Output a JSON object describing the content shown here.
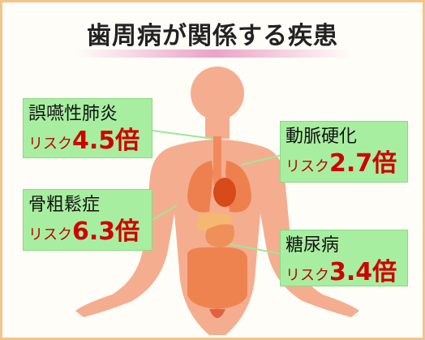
{
  "title": "歯周病が関係する疾患",
  "items": [
    {
      "name": "誤嚥性肺炎",
      "risk_prefix": "リスク",
      "risk_value": "4.5倍"
    },
    {
      "name": "動脈硬化",
      "risk_prefix": "リスク",
      "risk_value": "2.7倍"
    },
    {
      "name": "骨粗鬆症",
      "risk_prefix": "リスク",
      "risk_value": "6.3倍"
    },
    {
      "name": "糖尿病",
      "risk_prefix": "リスク",
      "risk_value": "3.4倍"
    }
  ]
}
